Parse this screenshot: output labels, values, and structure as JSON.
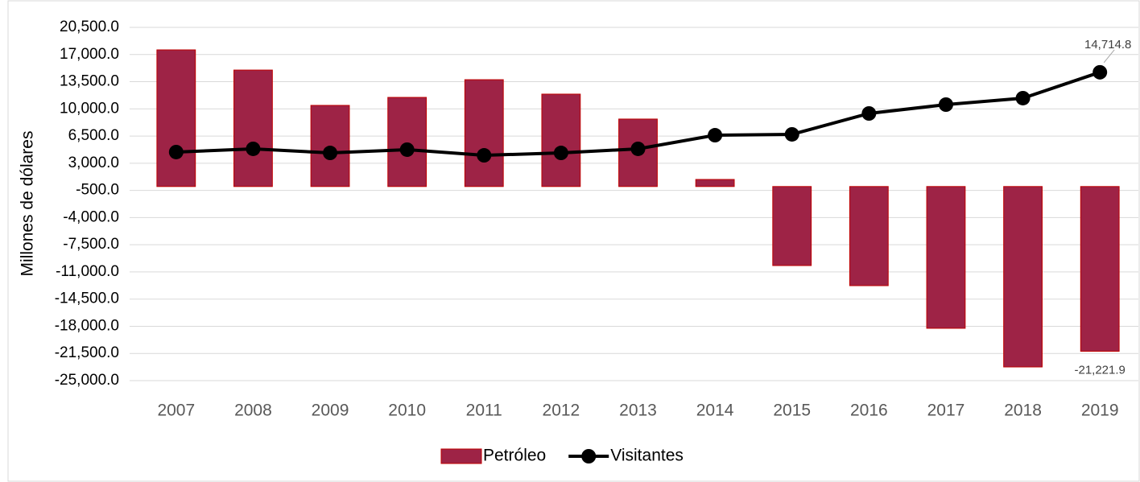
{
  "chart_data": {
    "type": "bar_line",
    "y_label": "Millones de dólares",
    "categories": [
      "2007",
      "2008",
      "2009",
      "2010",
      "2011",
      "2012",
      "2013",
      "2014",
      "2015",
      "2016",
      "2017",
      "2018",
      "2019"
    ],
    "series": [
      {
        "name": "Petróleo",
        "type": "bar",
        "color": "#9e2346",
        "values": [
          17600,
          15000,
          10450,
          11480,
          13760,
          11900,
          8690,
          910,
          -10180,
          -12770,
          -18260,
          -23240,
          -21221.9
        ],
        "value_labels": [
          null,
          null,
          null,
          null,
          null,
          null,
          null,
          null,
          null,
          null,
          null,
          null,
          "-21,221.9"
        ]
      },
      {
        "name": "Visitantes",
        "type": "line",
        "color": "#000000",
        "values": [
          4440,
          4850,
          4330,
          4750,
          4020,
          4330,
          4850,
          6610,
          6720,
          9410,
          10550,
          11380,
          14714.8
        ],
        "value_labels": [
          null,
          null,
          null,
          null,
          null,
          null,
          null,
          null,
          null,
          null,
          null,
          null,
          "14,714.8"
        ]
      }
    ],
    "ylim": [
      -25000,
      20500
    ],
    "yticks": [
      {
        "value": 20500,
        "label": "20,500.0"
      },
      {
        "value": 17000,
        "label": "17,000.0"
      },
      {
        "value": 13500,
        "label": "13,500.0"
      },
      {
        "value": 10000,
        "label": "10,000.0"
      },
      {
        "value": 6500,
        "label": "6,500.0"
      },
      {
        "value": 3000,
        "label": "3,000.0"
      },
      {
        "value": -500,
        "label": "-500.0"
      },
      {
        "value": -4000,
        "label": "-4,000.0"
      },
      {
        "value": -7500,
        "label": "-7,500.0"
      },
      {
        "value": -11000,
        "label": "-11,000.0"
      },
      {
        "value": -14500,
        "label": "-14,500.0"
      },
      {
        "value": -18000,
        "label": "-18,000.0"
      },
      {
        "value": -21500,
        "label": "-21,500.0"
      },
      {
        "value": -25000,
        "label": "-25,000.0"
      }
    ],
    "grid": true,
    "legend": "bottom"
  }
}
